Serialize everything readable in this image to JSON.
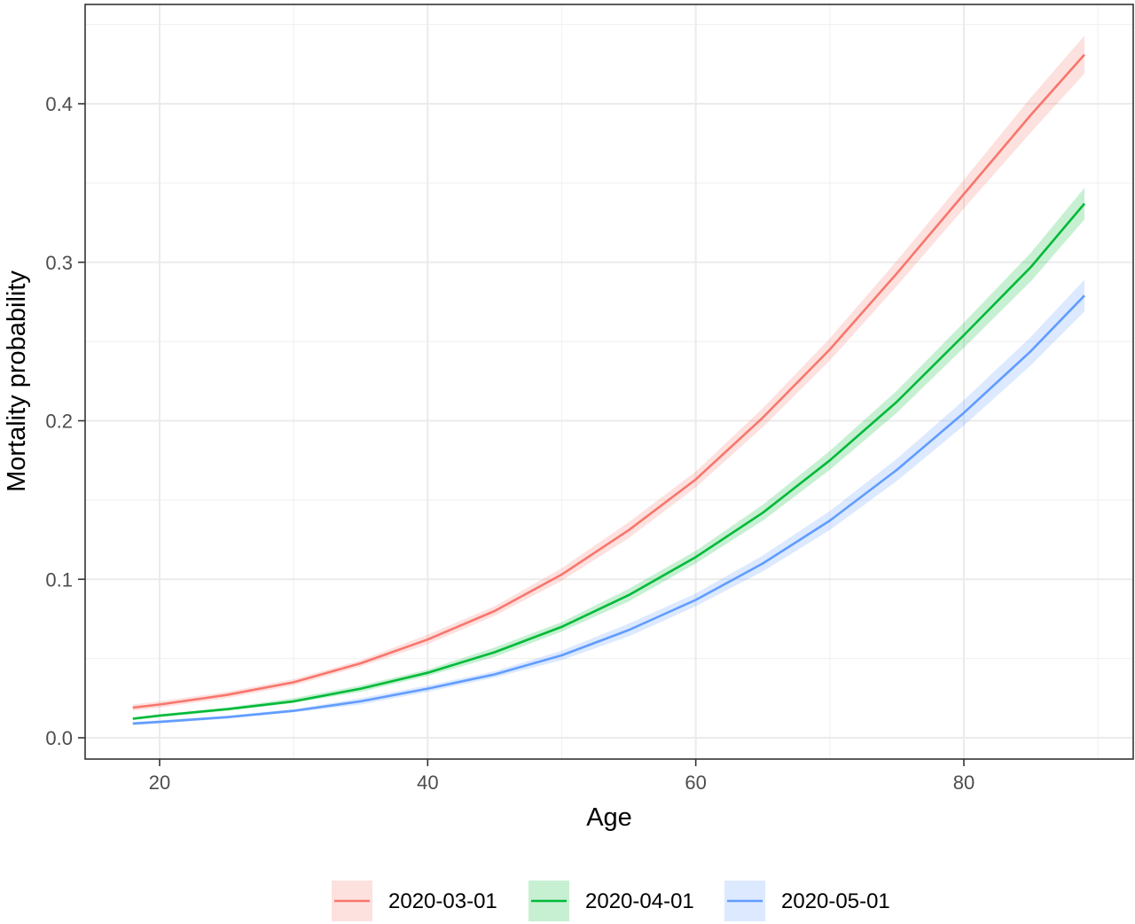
{
  "chart_data": {
    "type": "line",
    "title": "",
    "xlabel": "Age",
    "ylabel": "Mortality probability",
    "xlim": [
      18,
      89
    ],
    "ylim": [
      0,
      0.45
    ],
    "x_ticks": [
      20,
      40,
      60,
      80
    ],
    "x_tick_labels": [
      "20",
      "40",
      "60",
      "80"
    ],
    "y_ticks": [
      0.0,
      0.1,
      0.2,
      0.3,
      0.4
    ],
    "y_tick_labels": [
      "0.0",
      "0.1",
      "0.2",
      "0.3",
      "0.4"
    ],
    "grid": true,
    "legend_position": "bottom",
    "x": [
      18,
      20,
      25,
      30,
      35,
      40,
      45,
      50,
      55,
      60,
      65,
      70,
      75,
      80,
      85,
      89
    ],
    "series": [
      {
        "name": "2020-03-01",
        "color": "#F8766D",
        "values": [
          0.019,
          0.021,
          0.027,
          0.035,
          0.047,
          0.062,
          0.08,
          0.103,
          0.131,
          0.163,
          0.202,
          0.245,
          0.293,
          0.343,
          0.393,
          0.431
        ],
        "lower": [
          0.017,
          0.019,
          0.025,
          0.033,
          0.045,
          0.059,
          0.077,
          0.099,
          0.126,
          0.158,
          0.196,
          0.238,
          0.285,
          0.334,
          0.382,
          0.419
        ],
        "upper": [
          0.021,
          0.023,
          0.029,
          0.037,
          0.049,
          0.065,
          0.083,
          0.107,
          0.136,
          0.168,
          0.208,
          0.252,
          0.301,
          0.352,
          0.404,
          0.443
        ]
      },
      {
        "name": "2020-04-01",
        "color": "#00BA38",
        "values": [
          0.012,
          0.014,
          0.018,
          0.023,
          0.031,
          0.041,
          0.054,
          0.07,
          0.09,
          0.114,
          0.142,
          0.175,
          0.212,
          0.254,
          0.297,
          0.337
        ],
        "lower": [
          0.011,
          0.013,
          0.017,
          0.022,
          0.029,
          0.039,
          0.051,
          0.067,
          0.086,
          0.11,
          0.137,
          0.169,
          0.205,
          0.246,
          0.288,
          0.327
        ],
        "upper": [
          0.013,
          0.015,
          0.019,
          0.025,
          0.033,
          0.043,
          0.057,
          0.073,
          0.094,
          0.118,
          0.147,
          0.181,
          0.219,
          0.262,
          0.306,
          0.347
        ]
      },
      {
        "name": "2020-05-01",
        "color": "#619CFF",
        "values": [
          0.009,
          0.01,
          0.013,
          0.017,
          0.023,
          0.031,
          0.04,
          0.052,
          0.068,
          0.087,
          0.11,
          0.137,
          0.169,
          0.205,
          0.244,
          0.279
        ],
        "lower": [
          0.008,
          0.009,
          0.012,
          0.016,
          0.021,
          0.029,
          0.038,
          0.049,
          0.064,
          0.083,
          0.105,
          0.131,
          0.162,
          0.197,
          0.235,
          0.269
        ],
        "upper": [
          0.01,
          0.011,
          0.014,
          0.018,
          0.025,
          0.033,
          0.042,
          0.055,
          0.072,
          0.091,
          0.115,
          0.143,
          0.176,
          0.213,
          0.253,
          0.289
        ]
      }
    ]
  }
}
